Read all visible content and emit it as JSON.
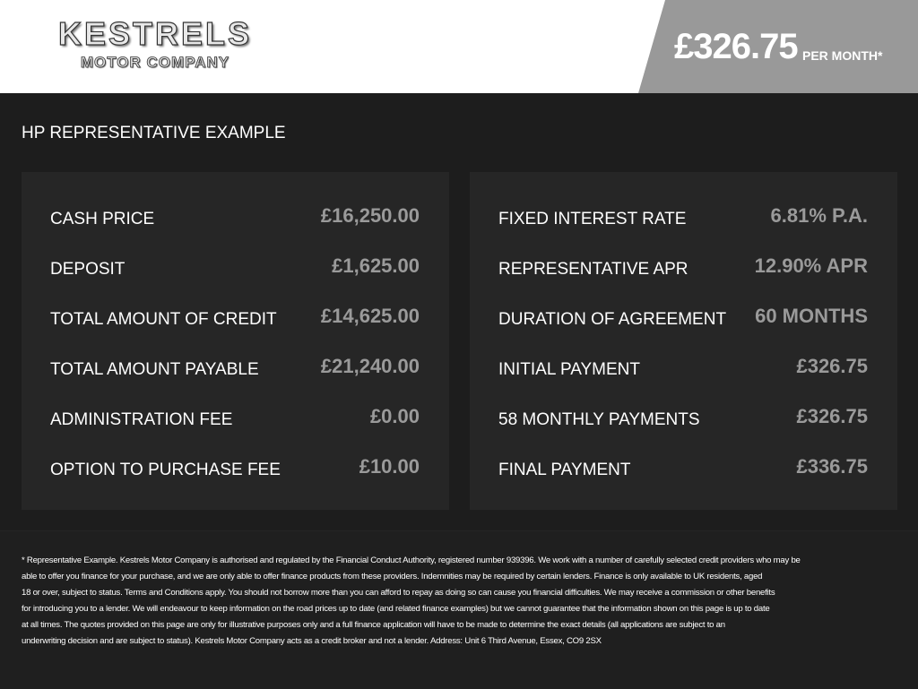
{
  "header": {
    "logo_title": "KESTRELS",
    "logo_subtitle": "MOTOR COMPANY",
    "price": "£326.75",
    "price_suffix": "PER MONTH*"
  },
  "section_title": "HP REPRESENTATIVE EXAMPLE",
  "panels": [
    {
      "rows": [
        {
          "label": "CASH PRICE",
          "value": "£16,250.00"
        },
        {
          "label": "DEPOSIT",
          "value": "£1,625.00"
        },
        {
          "label": "TOTAL AMOUNT OF CREDIT",
          "value": "£14,625.00"
        },
        {
          "label": "TOTAL AMOUNT PAYABLE",
          "value": "£21,240.00"
        },
        {
          "label": "ADMINISTRATION FEE",
          "value": "£0.00"
        },
        {
          "label": "OPTION TO PURCHASE FEE",
          "value": "£10.00"
        }
      ]
    },
    {
      "rows": [
        {
          "label": "FIXED INTEREST RATE",
          "value": "6.81% P.A."
        },
        {
          "label": "REPRESENTATIVE APR",
          "value": "12.90% APR"
        },
        {
          "label": "DURATION OF AGREEMENT",
          "value": "60 MONTHS"
        },
        {
          "label": "INITIAL PAYMENT",
          "value": "£326.75"
        },
        {
          "label": "58 MONTHLY PAYMENTS",
          "value": "£326.75"
        },
        {
          "label": "FINAL PAYMENT",
          "value": "£336.75"
        }
      ]
    }
  ],
  "disclaimer": [
    "* Representative Example. Kestrels Motor Company is authorised and regulated by the Financial Conduct Authority, registered number 939396. We work with a number of carefully selected credit providers who may be",
    "able to offer you finance for your purchase, and we are only able to offer finance products from these providers. Indemnities may be required by certain lenders. Finance is only available to UK residents, aged",
    "18 or over, subject to status. Terms and Conditions apply. You should not borrow more than you can afford to repay as doing so can cause you financial difficulties. We may receive a commission or other benefits",
    "for introducing you to a lender. We will endeavour to keep information on the road prices up to date (and related finance examples) but we cannot guarantee that the information shown on this page is up to date",
    "at all times. The quotes provided on this page are only for illustrative purposes only and a full finance application will have to be made to determine the exact details (all applications are subject to an",
    "underwriting decision and are subject to status). Kestrels Motor Company acts as a credit broker and not a lender. Address: Unit 6 Third Avenue, Essex, CO9 2SX"
  ]
}
